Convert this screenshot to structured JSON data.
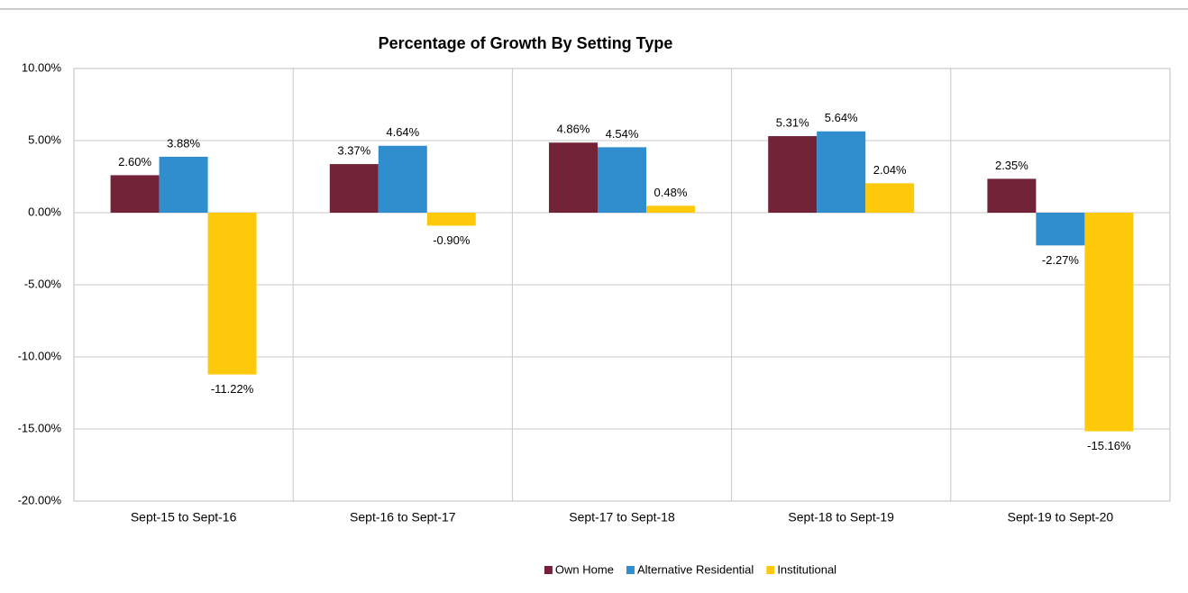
{
  "chart_data": {
    "type": "bar",
    "title": "Percentage of Growth By Setting Type",
    "categories": [
      "Sept-15 to Sept-16",
      "Sept-16 to Sept-17",
      "Sept-17 to Sept-18",
      "Sept-18 to Sept-19",
      "Sept-19 to Sept-20"
    ],
    "series": [
      {
        "name": "Own Home",
        "color": "#722337",
        "values": [
          2.6,
          3.37,
          4.86,
          5.31,
          2.35
        ],
        "value_labels": [
          "2.60%",
          "3.37%",
          "4.86%",
          "5.31%",
          "2.35%"
        ]
      },
      {
        "name": "Alternative Residential",
        "color": "#318ece",
        "values": [
          3.88,
          4.64,
          4.54,
          5.64,
          -2.27
        ],
        "value_labels": [
          "3.88%",
          "4.64%",
          "4.54%",
          "5.64%",
          "-2.27%"
        ]
      },
      {
        "name": "Institutional",
        "color": "#ffc90b",
        "values": [
          -11.22,
          -0.9,
          0.48,
          2.04,
          -15.16
        ],
        "value_labels": [
          "-11.22%",
          "-0.90%",
          "0.48%",
          "2.04%",
          "-15.16%"
        ]
      }
    ],
    "ylim": [
      -20,
      10
    ],
    "yticks": [
      {
        "value": -20,
        "label": "-20.00%"
      },
      {
        "value": -15,
        "label": "-15.00%"
      },
      {
        "value": -10,
        "label": "-10.00%"
      },
      {
        "value": -5,
        "label": "-5.00%"
      },
      {
        "value": 0,
        "label": "0.00%"
      },
      {
        "value": 5,
        "label": "5.00%"
      },
      {
        "value": 10,
        "label": "10.00%"
      }
    ],
    "grid": true,
    "legend": "bottom"
  }
}
